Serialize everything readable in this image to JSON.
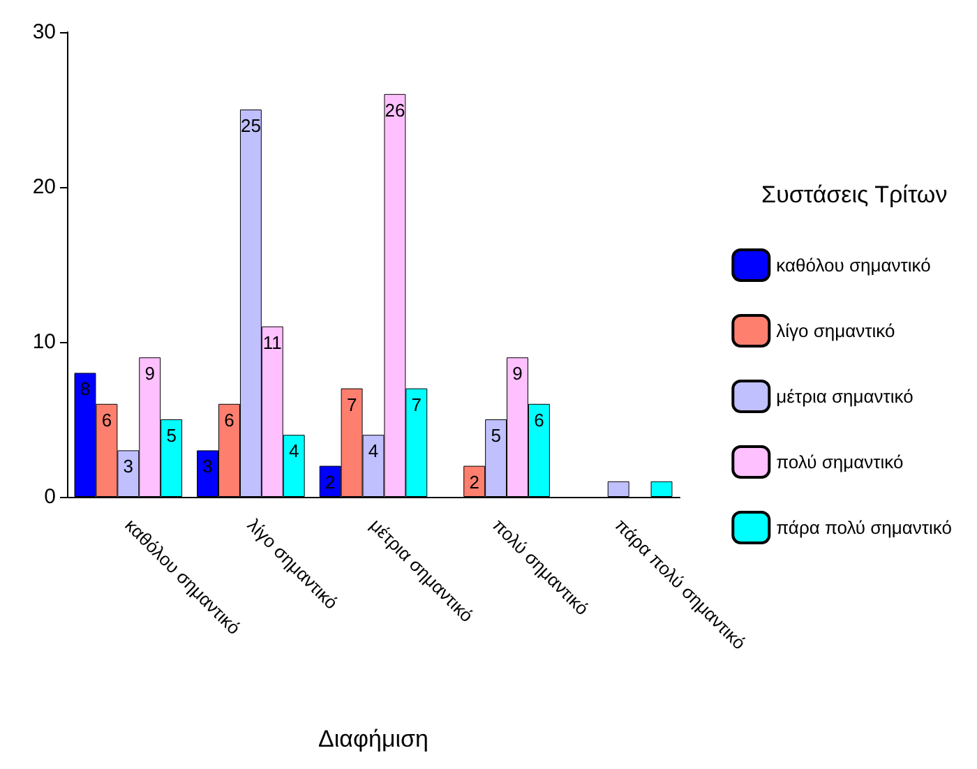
{
  "chart_data": {
    "type": "bar",
    "xlabel": "Διαφήμιση",
    "legend_title": "Συστάσεις Τρίτων",
    "legend": "right",
    "categories": [
      "καθόλου σημαντικό",
      "λίγο σημαντικό",
      "μέτρια σημαντικό",
      "πολύ σημαντικό",
      "πάρα πολύ σημαντικό"
    ],
    "ylim": [
      0,
      30
    ],
    "yticks": [
      0,
      10,
      20,
      30
    ],
    "grid": false,
    "series": [
      {
        "name": "καθόλου σημαντικό",
        "color": "#0000ff",
        "values": [
          8,
          3,
          2,
          null,
          null
        ],
        "value_labels": [
          "8",
          "3",
          "2",
          null,
          null
        ]
      },
      {
        "name": "λίγο σημαντικό",
        "color": "#ff7f6f",
        "values": [
          6,
          6,
          7,
          2,
          null
        ],
        "value_labels": [
          "6",
          "6",
          "7",
          "2",
          null
        ]
      },
      {
        "name": "μέτρια σημαντικό",
        "color": "#c0c0ff",
        "values": [
          3,
          25,
          4,
          5,
          1
        ],
        "value_labels": [
          "3",
          "25",
          "4",
          "5",
          null
        ]
      },
      {
        "name": "πολύ σημαντικό",
        "color": "#ffc0ff",
        "values": [
          9,
          11,
          26,
          9,
          null
        ],
        "value_labels": [
          "9",
          "11",
          "26",
          "9",
          null
        ]
      },
      {
        "name": "πάρα πολύ σημαντικό",
        "color": "#00ffff",
        "values": [
          5,
          4,
          7,
          6,
          1
        ],
        "value_labels": [
          "5",
          "4",
          "7",
          "6",
          null
        ]
      }
    ]
  }
}
